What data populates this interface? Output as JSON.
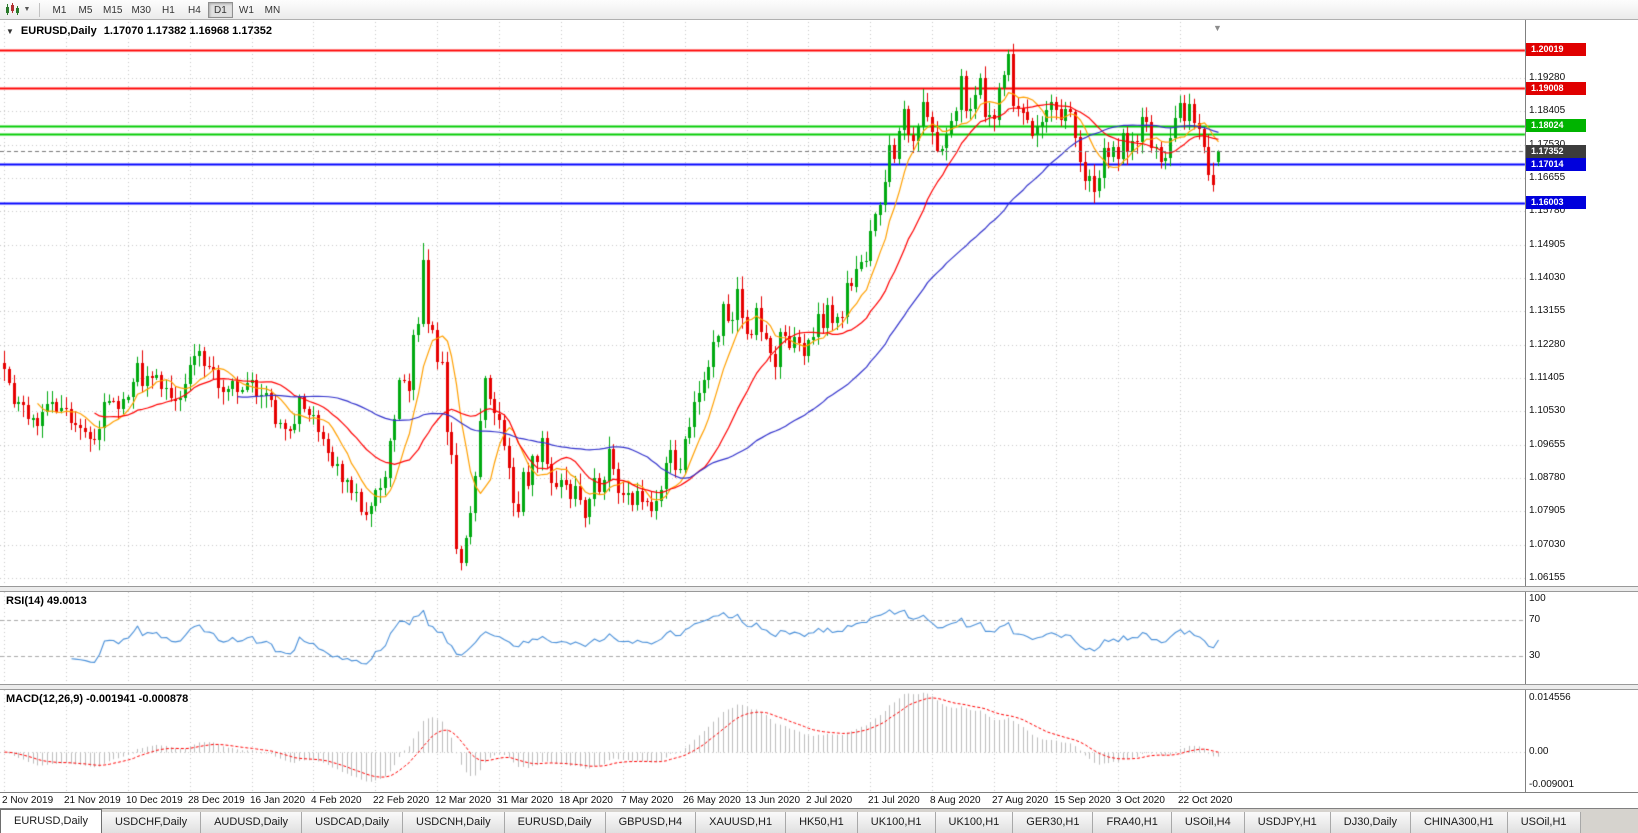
{
  "toolbar": {
    "timeframes": [
      "M1",
      "M5",
      "M15",
      "M30",
      "H1",
      "H4",
      "D1",
      "W1",
      "MN"
    ],
    "active_timeframe": "D1"
  },
  "icons": {
    "dropdown_caret": "▼",
    "collapse_arrow": "▼",
    "shift_marker": "▼"
  },
  "chart": {
    "symbol": "EURUSD,Daily",
    "ohlc": "1.17070 1.17382 1.16968 1.17352",
    "current_price": "1.17352"
  },
  "indicators": {
    "rsi": {
      "label": "RSI(14) 49.0013",
      "value": 49.0013,
      "levels": [
        {
          "label": "100",
          "value": 100
        },
        {
          "label": "70",
          "value": 70
        },
        {
          "label": "30",
          "value": 30
        }
      ]
    },
    "macd": {
      "label": "MACD(12,26,9) -0.001941 -0.000878",
      "main_value": -0.001941,
      "signal_value": -0.000878,
      "scale": [
        {
          "label": "0.014556",
          "value": 0.014556
        },
        {
          "label": "0.00",
          "value": 0
        },
        {
          "label": "-0.009001",
          "value": -0.009001
        }
      ]
    }
  },
  "price_axis": {
    "gridline_labels": [
      "1.19280",
      "1.18405",
      "1.17530",
      "1.16655",
      "1.15780",
      "1.14905",
      "1.14030",
      "1.13155",
      "1.12280",
      "1.11405",
      "1.10530",
      "1.09655",
      "1.08780",
      "1.07905",
      "1.07030",
      "1.06155"
    ],
    "badges": [
      {
        "label": "1.20019",
        "price": 1.20019,
        "color": "#e00000"
      },
      {
        "label": "1.19008",
        "price": 1.19008,
        "color": "#e00000"
      },
      {
        "label": "1.18024",
        "price": 1.18024,
        "color": "#00b400"
      },
      {
        "label": "1.17352",
        "price": 1.17352,
        "color": "#3c3c3c"
      },
      {
        "label": "1.17014",
        "price": 1.17014,
        "color": "#0000dc"
      },
      {
        "label": "1.16003",
        "price": 1.16003,
        "color": "#0000dc"
      }
    ]
  },
  "date_axis": {
    "labels": [
      "2 Nov 2019",
      "21 Nov 2019",
      "10 Dec 2019",
      "28 Dec 2019",
      "16 Jan 2020",
      "4 Feb 2020",
      "22 Feb 2020",
      "12 Mar 2020",
      "31 Mar 2020",
      "18 Apr 2020",
      "7 May 2020",
      "26 May 2020",
      "13 Jun 2020",
      "2 Jul 2020",
      "21 Jul 2020",
      "8 Aug 2020",
      "27 Aug 2020",
      "15 Sep 2020",
      "3 Oct 2020",
      "22 Oct 2020"
    ],
    "label_every_bars": 13
  },
  "tabs": [
    {
      "label": "EURUSD,Daily",
      "active": true
    },
    {
      "label": "USDCHF,Daily",
      "active": false
    },
    {
      "label": "AUDUSD,Daily",
      "active": false
    },
    {
      "label": "USDCAD,Daily",
      "active": false
    },
    {
      "label": "USDCNH,Daily",
      "active": false
    },
    {
      "label": "EURUSD,Daily",
      "active": false
    },
    {
      "label": "GBPUSD,H4",
      "active": false
    },
    {
      "label": "XAUUSD,H1",
      "active": false
    },
    {
      "label": "HK50,H1",
      "active": false
    },
    {
      "label": "UK100,H1",
      "active": false
    },
    {
      "label": "UK100,H1",
      "active": false
    },
    {
      "label": "GER30,H1",
      "active": false
    },
    {
      "label": "FRA40,H1",
      "active": false
    },
    {
      "label": "USOil,H4",
      "active": false
    },
    {
      "label": "USDJPY,H1",
      "active": false
    },
    {
      "label": "DJ30,Daily",
      "active": false
    },
    {
      "label": "CHINA300,H1",
      "active": false
    },
    {
      "label": "USOil,H1",
      "active": false
    }
  ],
  "chart_data": {
    "type": "candlestick",
    "symbol": "EURUSD",
    "timeframe": "Daily",
    "price_range": {
      "min": 1.0595,
      "max": 1.2075
    },
    "first_open": 1.118,
    "closes": [
      1.1165,
      1.1128,
      1.1072,
      1.1077,
      1.1069,
      1.1032,
      1.1036,
      1.1016,
      1.1052,
      1.1073,
      1.1078,
      1.1053,
      1.1062,
      1.106,
      1.1022,
      1.1017,
      1.101,
      1.1,
      1.0981,
      1.0978,
      1.1008,
      1.1077,
      1.1081,
      1.108,
      1.1059,
      1.1085,
      1.1092,
      1.1131,
      1.118,
      1.112,
      1.1146,
      1.114,
      1.1148,
      1.1112,
      1.1114,
      1.1087,
      1.1083,
      1.1089,
      1.1125,
      1.1175,
      1.1198,
      1.1212,
      1.1172,
      1.117,
      1.1162,
      1.1116,
      1.1103,
      1.1112,
      1.1132,
      1.1104,
      1.111,
      1.1128,
      1.1135,
      1.1092,
      1.1095,
      1.1102,
      1.1084,
      1.1022,
      1.1023,
      1.1008,
      1.1002,
      1.1019,
      1.1093,
      1.106,
      1.1044,
      1.1045,
      1.1,
      1.0982,
      1.0946,
      1.091,
      1.0915,
      1.0868,
      1.0873,
      1.0839,
      1.0842,
      1.079,
      1.0783,
      1.0805,
      1.0846,
      1.0851,
      1.088,
      1.0976,
      1.1032,
      1.1135,
      1.1134,
      1.1108,
      1.1253,
      1.1283,
      1.145,
      1.1281,
      1.1267,
      1.1184,
      1.1182,
      1.0998,
      1.0938,
      1.0692,
      1.0656,
      1.0722,
      1.0786,
      1.0883,
      1.1029,
      1.114,
      1.1085,
      1.1047,
      1.1031,
      1.0963,
      1.0906,
      1.0811,
      1.0791,
      1.0895,
      1.0859,
      1.0935,
      1.092,
      1.0983,
      1.0915,
      1.0866,
      1.0856,
      1.0874,
      1.0862,
      1.0822,
      1.0857,
      1.0821,
      1.0775,
      1.0823,
      1.0878,
      1.084,
      1.0872,
      1.0955,
      1.0902,
      1.084,
      1.0834,
      1.0839,
      1.0807,
      1.0845,
      1.0817,
      1.0815,
      1.0792,
      1.0818,
      1.0848,
      1.0917,
      1.0951,
      1.0898,
      1.0901,
      1.0982,
      1.1011,
      1.1077,
      1.1101,
      1.1135,
      1.1169,
      1.1235,
      1.125,
      1.1335,
      1.1291,
      1.1294,
      1.1375,
      1.13,
      1.1256,
      1.1254,
      1.1324,
      1.126,
      1.1245,
      1.1205,
      1.117,
      1.1262,
      1.1251,
      1.1219,
      1.1248,
      1.1233,
      1.1198,
      1.124,
      1.1248,
      1.1309,
      1.1271,
      1.1332,
      1.1284,
      1.1301,
      1.13,
      1.1389,
      1.1381,
      1.1428,
      1.1446,
      1.1447,
      1.1527,
      1.1571,
      1.1596,
      1.1656,
      1.1752,
      1.1716,
      1.179,
      1.1846,
      1.1778,
      1.1762,
      1.1802,
      1.1866,
      1.1827,
      1.1787,
      1.1738,
      1.1742,
      1.178,
      1.1815,
      1.1842,
      1.1932,
      1.184,
      1.1846,
      1.1884,
      1.1928,
      1.1826,
      1.183,
      1.182,
      1.1903,
      1.1936,
      1.199,
      1.1854,
      1.185,
      1.1838,
      1.1816,
      1.1777,
      1.1801,
      1.1813,
      1.1845,
      1.1866,
      1.1846,
      1.1816,
      1.1847,
      1.1839,
      1.1772,
      1.1707,
      1.1658,
      1.1672,
      1.163,
      1.1665,
      1.1744,
      1.1721,
      1.1748,
      1.1716,
      1.1784,
      1.1733,
      1.1763,
      1.176,
      1.1826,
      1.1812,
      1.1745,
      1.1747,
      1.1708,
      1.1717,
      1.177,
      1.1823,
      1.1862,
      1.1816,
      1.186,
      1.181,
      1.1794,
      1.1746,
      1.1673,
      1.1647,
      1.17352
    ],
    "overrides": {
      "88": {
        "high": 1.1495
      },
      "96": {
        "low": 1.0636
      },
      "211": {
        "high": 1.2002
      },
      "255": {
        "open": 1.1707,
        "high": 1.17382,
        "low": 1.16968
      }
    },
    "horizontal_lines": [
      {
        "price": 1.20019,
        "color": "#ff0000"
      },
      {
        "price": 1.19008,
        "color": "#ff0000"
      },
      {
        "price": 1.18024,
        "color": "#00cc00"
      },
      {
        "price": 1.178,
        "color": "#00cc00"
      },
      {
        "price": 1.17014,
        "color": "#0000ff"
      },
      {
        "price": 1.16003,
        "color": "#0000ff"
      }
    ],
    "moving_averages": [
      {
        "period": 8,
        "color": "#ffa000"
      },
      {
        "period": 20,
        "color": "#ff0000"
      },
      {
        "period": 50,
        "color": "#3333cc"
      }
    ],
    "rsi_period": 14,
    "macd_params": {
      "fast": 12,
      "slow": 26,
      "signal": 9
    },
    "colors": {
      "up": "#00aa11",
      "down": "#e60000",
      "grid": "#c8c8c8",
      "rsi_line": "#4a90d9",
      "rsi_levels": "#a8a8a8",
      "macd_hist": "#bcbcbc",
      "macd_signal": "#ff0000",
      "current_price_line": "#777777"
    }
  }
}
